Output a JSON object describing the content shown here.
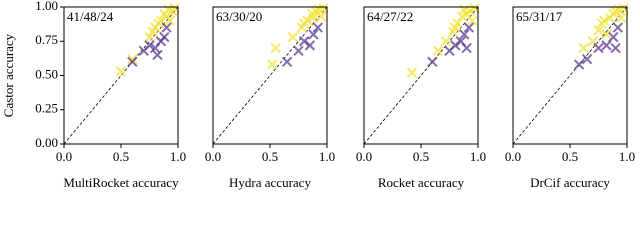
{
  "chart_data": [
    {
      "type": "scatter",
      "annotation": "41/48/24",
      "xlabel": "MultiRocket accuracy",
      "ylabel": "Castor accuracy",
      "xlim": [
        0,
        1
      ],
      "ylim": [
        0,
        1
      ],
      "xticks": [
        {
          "value": 0,
          "label": "0.0"
        },
        {
          "value": 0.5,
          "label": "0.5"
        },
        {
          "value": 1,
          "label": "1.0"
        }
      ],
      "yticks": [
        {
          "value": 0,
          "label": "0.00"
        },
        {
          "value": 0.25,
          "label": "0.25"
        },
        {
          "value": 0.5,
          "label": "0.50"
        },
        {
          "value": 0.75,
          "label": "0.75"
        },
        {
          "value": 1,
          "label": "1.00"
        }
      ],
      "series": [
        {
          "color": "#f2e135",
          "x": [
            0.5,
            0.6,
            0.75,
            0.8,
            0.85,
            0.88,
            0.9,
            0.92,
            0.95,
            0.78,
            0.83,
            0.93,
            0.97
          ],
          "values": [
            0.53,
            0.62,
            0.78,
            0.85,
            0.9,
            0.95,
            0.93,
            0.98,
            0.97,
            0.82,
            0.88,
            0.9,
            0.99
          ]
        },
        {
          "color": "#5b3a8e",
          "x": [
            0.6,
            0.75,
            0.8,
            0.85,
            0.82,
            0.88,
            0.9,
            0.7
          ],
          "values": [
            0.6,
            0.72,
            0.7,
            0.75,
            0.65,
            0.78,
            0.85,
            0.68
          ]
        }
      ]
    },
    {
      "type": "scatter",
      "annotation": "63/30/20",
      "xlabel": "Hydra accuracy",
      "xlim": [
        0,
        1
      ],
      "ylim": [
        0,
        1
      ],
      "xticks": [
        {
          "value": 0,
          "label": "0.0"
        },
        {
          "value": 0.5,
          "label": "0.5"
        },
        {
          "value": 1,
          "label": "1.0"
        }
      ],
      "series": [
        {
          "color": "#f2e135",
          "x": [
            0.52,
            0.55,
            0.7,
            0.78,
            0.83,
            0.87,
            0.9,
            0.93,
            0.95,
            0.8,
            0.88,
            0.97
          ],
          "values": [
            0.58,
            0.7,
            0.78,
            0.85,
            0.9,
            0.95,
            0.97,
            0.98,
            0.93,
            0.88,
            0.92,
            0.99
          ]
        },
        {
          "color": "#5b3a8e",
          "x": [
            0.65,
            0.75,
            0.8,
            0.85,
            0.88,
            0.92
          ],
          "values": [
            0.6,
            0.68,
            0.75,
            0.72,
            0.8,
            0.85
          ]
        }
      ]
    },
    {
      "type": "scatter",
      "annotation": "64/27/22",
      "xlabel": "Rocket accuracy",
      "xlim": [
        0,
        1
      ],
      "ylim": [
        0,
        1
      ],
      "xticks": [
        {
          "value": 0,
          "label": "0.0"
        },
        {
          "value": 0.5,
          "label": "0.5"
        },
        {
          "value": 1,
          "label": "1.0"
        }
      ],
      "series": [
        {
          "color": "#f2e135",
          "x": [
            0.42,
            0.65,
            0.72,
            0.78,
            0.82,
            0.86,
            0.9,
            0.93,
            0.95,
            0.8,
            0.88,
            0.97
          ],
          "values": [
            0.52,
            0.68,
            0.75,
            0.82,
            0.88,
            0.93,
            0.95,
            0.97,
            0.9,
            0.85,
            0.98,
            0.99
          ]
        },
        {
          "color": "#5b3a8e",
          "x": [
            0.6,
            0.75,
            0.8,
            0.85,
            0.88,
            0.92,
            0.9
          ],
          "values": [
            0.6,
            0.68,
            0.72,
            0.75,
            0.8,
            0.85,
            0.7
          ]
        }
      ]
    },
    {
      "type": "scatter",
      "annotation": "65/31/17",
      "xlabel": "DrCif accuracy",
      "xlim": [
        0,
        1
      ],
      "ylim": [
        0,
        1
      ],
      "xticks": [
        {
          "value": 0,
          "label": "0.0"
        },
        {
          "value": 0.5,
          "label": "0.5"
        },
        {
          "value": 1,
          "label": "1.0"
        }
      ],
      "series": [
        {
          "color": "#f2e135",
          "x": [
            0.62,
            0.7,
            0.75,
            0.8,
            0.85,
            0.88,
            0.9,
            0.93,
            0.95,
            0.78,
            0.97,
            0.82
          ],
          "values": [
            0.7,
            0.75,
            0.83,
            0.9,
            0.92,
            0.95,
            0.97,
            0.98,
            0.92,
            0.88,
            0.99,
            0.8
          ]
        },
        {
          "color": "#5b3a8e",
          "x": [
            0.58,
            0.65,
            0.75,
            0.82,
            0.88,
            0.92,
            0.9
          ],
          "values": [
            0.58,
            0.62,
            0.7,
            0.72,
            0.78,
            0.85,
            0.7
          ]
        }
      ]
    }
  ]
}
